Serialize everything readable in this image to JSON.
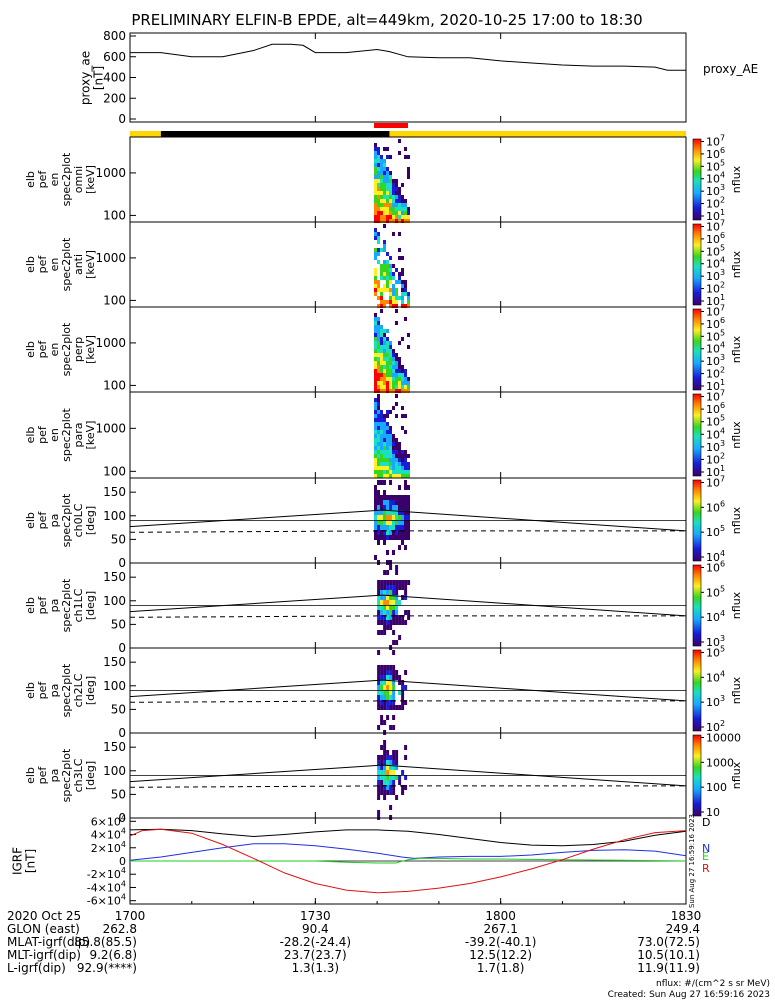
{
  "title": "PRELIMINARY ELFIN-B EPDE, alt=449km, 2020-10-25 17:00 to 18:30",
  "colors": {
    "ae_line": "#000000",
    "status_black": "#000000",
    "status_yellow": "#ffd700",
    "status_red": "#ff0000",
    "igrf_d": "#000000",
    "igrf_n": "#1f2fe0",
    "igrf_e": "#22cc22",
    "igrf_r": "#dd1111"
  },
  "chart_data": [
    {
      "type": "line",
      "panel": "proxy_ae",
      "ylabel": "proxy_ae [nT]",
      "legend": "proxy_AE",
      "ylim": [
        0,
        800
      ],
      "yticks": [
        "0",
        "200",
        "400",
        "600",
        "800"
      ],
      "x": [
        1700,
        1705,
        1710,
        1715,
        1720,
        1723,
        1726,
        1728,
        1730,
        1735,
        1740,
        1742,
        1745,
        1750,
        1755,
        1800,
        1805,
        1810,
        1815,
        1820,
        1825,
        1827,
        1830
      ],
      "values": [
        640,
        640,
        600,
        600,
        660,
        720,
        720,
        710,
        640,
        640,
        670,
        650,
        600,
        590,
        590,
        560,
        540,
        520,
        510,
        510,
        500,
        470,
        470
      ]
    },
    {
      "type": "heatmap",
      "panel": "omni",
      "ylabel": "elb pef en spec2plot omni [keV]",
      "yscale": "log",
      "yticks": [
        "100",
        "1000"
      ],
      "xrange": [
        1739.5,
        1745
      ],
      "colorbar_ticks": [
        "10^1",
        "10^2",
        "10^3",
        "10^4",
        "10^5",
        "10^6",
        "10^7"
      ],
      "colorbar_label": "nflux"
    },
    {
      "type": "heatmap",
      "panel": "anti",
      "ylabel": "elb pef en spec2plot anti [keV]",
      "yscale": "log",
      "yticks": [
        "100",
        "1000"
      ],
      "xrange": [
        1739.5,
        1745
      ],
      "colorbar_ticks": [
        "10^1",
        "10^2",
        "10^3",
        "10^4",
        "10^5",
        "10^6",
        "10^7"
      ],
      "colorbar_label": "nflux"
    },
    {
      "type": "heatmap",
      "panel": "perp",
      "ylabel": "elb pef en spec2plot perp [keV]",
      "yscale": "log",
      "yticks": [
        "100",
        "1000"
      ],
      "xrange": [
        1739.5,
        1745
      ],
      "colorbar_ticks": [
        "10^1",
        "10^2",
        "10^3",
        "10^4",
        "10^5",
        "10^6",
        "10^7"
      ],
      "colorbar_label": "nflux"
    },
    {
      "type": "heatmap",
      "panel": "para",
      "ylabel": "elb pef en spec2plot para [keV]",
      "yscale": "log",
      "yticks": [
        "100",
        "1000"
      ],
      "xrange": [
        1739.5,
        1745
      ],
      "colorbar_ticks": [
        "10^1",
        "10^2",
        "10^3",
        "10^4",
        "10^5",
        "10^6",
        "10^7"
      ],
      "colorbar_label": "nflux"
    },
    {
      "type": "heatmap",
      "panel": "ch0LC",
      "ylabel": "elb pef pa spec2plot ch0LC [deg]",
      "ylim": [
        0,
        180
      ],
      "yticks": [
        "0",
        "50",
        "100",
        "150"
      ],
      "xrange": [
        1739.5,
        1745
      ],
      "lc_line": {
        "x": [
          1700,
          1741,
          1830
        ],
        "y": [
          77,
          112,
          68
        ]
      },
      "lc_dashed": {
        "x": [
          1700,
          1741,
          1830
        ],
        "y": [
          65,
          68,
          68
        ]
      },
      "colorbar_ticks": [
        "10^4",
        "10^5",
        "10^6",
        "10^7"
      ],
      "colorbar_label": "nflux"
    },
    {
      "type": "heatmap",
      "panel": "ch1LC",
      "ylabel": "elb pef pa spec2plot ch1LC [deg]",
      "ylim": [
        0,
        180
      ],
      "yticks": [
        "0",
        "50",
        "100",
        "150"
      ],
      "xrange": [
        1740,
        1745
      ],
      "lc_line": {
        "x": [
          1700,
          1741,
          1830
        ],
        "y": [
          77,
          112,
          68
        ]
      },
      "lc_dashed": {
        "x": [
          1700,
          1741,
          1830
        ],
        "y": [
          65,
          68,
          68
        ]
      },
      "colorbar_ticks": [
        "10^3",
        "10^4",
        "10^5",
        "10^6"
      ],
      "colorbar_label": "nflux"
    },
    {
      "type": "heatmap",
      "panel": "ch2LC",
      "ylabel": "elb pef pa spec2plot ch2LC [deg]",
      "ylim": [
        0,
        180
      ],
      "yticks": [
        "0",
        "50",
        "100",
        "150"
      ],
      "xrange": [
        1740,
        1744.5
      ],
      "lc_line": {
        "x": [
          1700,
          1741,
          1830
        ],
        "y": [
          77,
          112,
          68
        ]
      },
      "lc_dashed": {
        "x": [
          1700,
          1741,
          1830
        ],
        "y": [
          65,
          68,
          68
        ]
      },
      "colorbar_ticks": [
        "10^2",
        "10^3",
        "10^4",
        "10^5"
      ],
      "colorbar_label": "nflux"
    },
    {
      "type": "heatmap",
      "panel": "ch3LC",
      "ylabel": "elb pef pa spec2plot ch3LC [deg]",
      "ylim": [
        0,
        180
      ],
      "yticks": [
        "0",
        "50",
        "100",
        "150"
      ],
      "xrange": [
        1740,
        1744.5
      ],
      "lc_line": {
        "x": [
          1700,
          1741,
          1830
        ],
        "y": [
          77,
          112,
          68
        ]
      },
      "lc_dashed": {
        "x": [
          1700,
          1741,
          1830
        ],
        "y": [
          65,
          68,
          68
        ]
      },
      "colorbar_ticks": [
        "10",
        "100",
        "1000",
        "10000"
      ],
      "colorbar_label": "nflux"
    },
    {
      "type": "line",
      "panel": "igrf",
      "ylabel": "IGRF [nT]",
      "ylim": [
        -65000,
        65000
      ],
      "yticks": [
        "-6×10^4",
        "-4×10^4",
        "-2×10^4",
        "0",
        "2×10^4",
        "4×10^4",
        "6×10^4"
      ],
      "ytick_values": [
        -60000,
        -40000,
        -20000,
        0,
        20000,
        40000,
        60000
      ],
      "series": [
        {
          "name": "D",
          "color": "#000000",
          "x": [
            1700,
            1705,
            1710,
            1715,
            1720,
            1725,
            1730,
            1735,
            1740,
            1745,
            1750,
            1755,
            1800,
            1805,
            1810,
            1815,
            1820,
            1825,
            1830
          ],
          "values": [
            47000,
            48000,
            46000,
            41000,
            37000,
            40000,
            44000,
            47000,
            47000,
            45000,
            40000,
            34000,
            28000,
            24000,
            23000,
            25000,
            30000,
            39000,
            45000
          ]
        },
        {
          "name": "N",
          "color": "#1f2fe0",
          "x": [
            1700,
            1705,
            1710,
            1715,
            1720,
            1725,
            1730,
            1735,
            1740,
            1744,
            1746,
            1750,
            1755,
            1800,
            1805,
            1810,
            1815,
            1820,
            1825,
            1830
          ],
          "values": [
            1000,
            6000,
            13000,
            20000,
            26000,
            26000,
            23000,
            18000,
            12000,
            6000,
            4000,
            6000,
            7000,
            7000,
            9000,
            13000,
            16000,
            17000,
            15000,
            8000
          ]
        },
        {
          "name": "E",
          "color": "#22cc22",
          "x": [
            1700,
            1710,
            1720,
            1730,
            1735,
            1740,
            1743,
            1745,
            1747,
            1750,
            1755,
            1800,
            1810,
            1820,
            1830
          ],
          "values": [
            0,
            0,
            0,
            0,
            -2000,
            -3000,
            -3000,
            2000,
            4000,
            4000,
            3000,
            3000,
            2000,
            1000,
            0
          ]
        },
        {
          "name": "R",
          "color": "#dd1111",
          "x": [
            1700,
            1702,
            1705,
            1710,
            1715,
            1720,
            1725,
            1730,
            1735,
            1740,
            1745,
            1750,
            1755,
            1800,
            1805,
            1810,
            1815,
            1820,
            1825,
            1830
          ],
          "values": [
            38000,
            46000,
            48000,
            42000,
            25000,
            4000,
            -18000,
            -34000,
            -44000,
            -48000,
            -46000,
            -41000,
            -34000,
            -24000,
            -12000,
            2000,
            18000,
            32000,
            43000,
            46000
          ]
        }
      ]
    }
  ],
  "xaxis": {
    "ticks": [
      "1700",
      "1730",
      "1800",
      "1830"
    ],
    "tick_values": [
      1700,
      1730,
      1800,
      1830
    ],
    "row_labels": [
      "2020 Oct 25",
      "GLON (east)",
      "MLAT-igrf(dip)",
      "MLT-igrf(dip)",
      "L-igrf(dip)"
    ],
    "rows": [
      [
        "262.8",
        "90.4",
        "267.1",
        "249.4"
      ],
      [
        "85.8(85.5)",
        "-28.2(-24.4)",
        "-39.2(-40.1)",
        "73.0(72.5)"
      ],
      [
        "9.2(6.8)",
        "23.7(23.7)",
        "12.5(12.2)",
        "10.5(10.1)"
      ],
      [
        "92.9(****)",
        "1.3(1.3)",
        "1.7(1.8)",
        "11.9(11.9)"
      ]
    ]
  },
  "status_bar": {
    "segments": [
      {
        "from": 1700,
        "to": 1705,
        "color": "yellow"
      },
      {
        "from": 1705,
        "to": 1742,
        "color": "black"
      },
      {
        "from": 1742,
        "to": 1830,
        "color": "yellow"
      }
    ],
    "red_marker": [
      1739.5,
      1745
    ]
  },
  "side_label": "Sun Aug 27 16:59:16 2023",
  "footer": {
    "units": "nflux: #/(cm^2 s sr MeV)",
    "created": "Created: Sun Aug 27 16:59:16 2023"
  }
}
